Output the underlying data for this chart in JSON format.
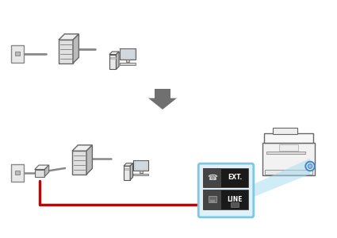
{
  "bg_color": "#ffffff",
  "arrow_color": "#707070",
  "red_line_color": "#cc0000",
  "light_blue_color": "#7ec8e3",
  "black_box_color": "#1a1a1a",
  "white_color": "#ffffff",
  "gray_line": "#888888",
  "wall_fill": "#e8e8e8",
  "wall_edge": "#888888",
  "device_fill": "#e0e0e0",
  "device_edge": "#666666",
  "device_top": "#f0f0f0",
  "device_right": "#bbbbbb",
  "computer_fill": "#e8e8e8",
  "computer_edge": "#555555",
  "screen_fill": "#d0d8e0",
  "printer_fill": "#f2f2f2",
  "printer_edge": "#666666",
  "cyan_fill": "#aaddf0",
  "port_circle_edge": "#4488cc",
  "port_circle_fill": "#eef4ff"
}
